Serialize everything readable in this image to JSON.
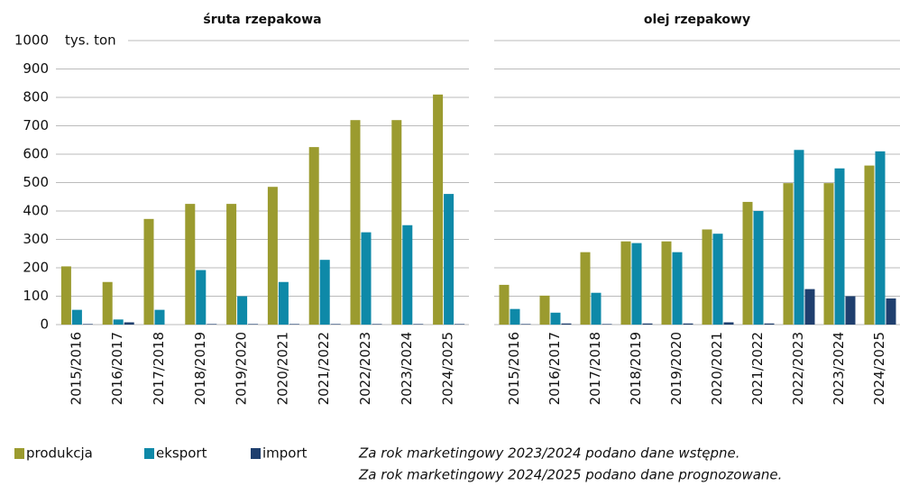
{
  "chart_data": [
    {
      "type": "bar",
      "title": "śruta rzepakowa",
      "ylabel": "tys. ton",
      "categories": [
        "2015/2016",
        "2016/2017",
        "2017/2018",
        "2018/2019",
        "2019/2020",
        "2020/2021",
        "2021/2022",
        "2022/2023",
        "2023/2024",
        "2024/2025"
      ],
      "series": [
        {
          "name": "produkcja",
          "color": "#9b9b2f",
          "values": [
            205,
            150,
            372,
            425,
            425,
            485,
            625,
            720,
            720,
            810
          ]
        },
        {
          "name": "eksport",
          "color": "#0e89a8",
          "values": [
            52,
            18,
            52,
            192,
            100,
            150,
            228,
            325,
            350,
            460
          ]
        },
        {
          "name": "import",
          "color": "#1f3f6e",
          "values": [
            2,
            8,
            0,
            2,
            2,
            2,
            2,
            2,
            2,
            2
          ]
        }
      ],
      "ylim": [
        0,
        1000
      ],
      "yticks": [
        0,
        100,
        200,
        300,
        400,
        500,
        600,
        700,
        800,
        900,
        1000
      ],
      "grid": true
    },
    {
      "type": "bar",
      "title": "olej rzepakowy",
      "categories": [
        "2015/2016",
        "2016/2017",
        "2017/2018",
        "2018/2019",
        "2019/2020",
        "2020/2021",
        "2021/2022",
        "2022/2023",
        "2023/2024",
        "2024/2025"
      ],
      "series": [
        {
          "color": "#9b9b2f",
          "values": [
            140,
            102,
            255,
            293,
            293,
            335,
            432,
            498,
            498,
            560
          ]
        },
        {
          "color": "#0e89a8",
          "values": [
            55,
            42,
            112,
            287,
            255,
            320,
            400,
            615,
            550,
            610
          ]
        },
        {
          "color": "#1f3f6e",
          "values": [
            2,
            4,
            2,
            4,
            4,
            8,
            4,
            125,
            100,
            92
          ]
        }
      ]
    }
  ],
  "notes": [
    "Za rok marketingowy 2023/2024 podano dane wstępne.",
    "Za rok marketingowy 2024/2025 podano dane prognozowane."
  ]
}
